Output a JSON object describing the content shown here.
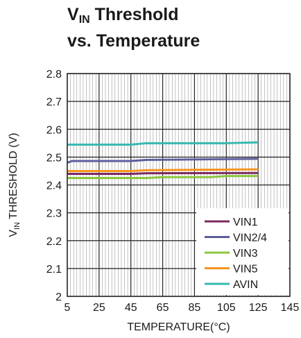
{
  "chart_data": {
    "type": "line",
    "title_parts": {
      "v": "V",
      "sub": "IN",
      "rest": " Threshold",
      "line2": "vs. Temperature"
    },
    "xlabel": "TEMPERATURE(°C)",
    "ylabel_parts": {
      "v": "V",
      "sub": "IN",
      "rest": " THRESHOLD (V)"
    },
    "xlim": [
      5,
      145
    ],
    "ylim": [
      2.0,
      2.8
    ],
    "xticks": [
      5,
      25,
      45,
      65,
      85,
      105,
      125,
      145
    ],
    "yticks": [
      2,
      2.1,
      2.2,
      2.3,
      2.4,
      2.5,
      2.6,
      2.7,
      2.8
    ],
    "ytick_labels": [
      "2",
      "2.1",
      "2.2",
      "2.3",
      "2.4",
      "2.5",
      "2.6",
      "2.7",
      "2.8"
    ],
    "grid": true,
    "legend_position": "bottom-right",
    "series": [
      {
        "name": "VIN1",
        "color": "#7a2a5e",
        "x": [
          5,
          45,
          55,
          125
        ],
        "y": [
          2.44,
          2.44,
          2.442,
          2.443
        ]
      },
      {
        "name": "VIN2/4",
        "color": "#5c5e9c",
        "x": [
          5,
          8,
          45,
          55,
          125
        ],
        "y": [
          2.48,
          2.486,
          2.486,
          2.49,
          2.494
        ]
      },
      {
        "name": "VIN3",
        "color": "#8cc63e",
        "x": [
          5,
          55,
          65,
          95,
          105,
          125
        ],
        "y": [
          2.425,
          2.425,
          2.428,
          2.428,
          2.432,
          2.432
        ]
      },
      {
        "name": "VIN5",
        "color": "#f7941d",
        "x": [
          5,
          45,
          55,
          125
        ],
        "y": [
          2.45,
          2.45,
          2.453,
          2.456
        ]
      },
      {
        "name": "AVIN",
        "color": "#36b8b0",
        "x": [
          5,
          45,
          55,
          105,
          125
        ],
        "y": [
          2.545,
          2.545,
          2.55,
          2.55,
          2.553
        ]
      }
    ]
  }
}
